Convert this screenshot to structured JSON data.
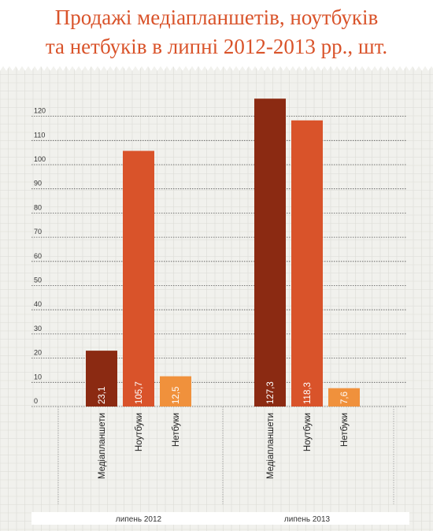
{
  "title": {
    "line1": "Продажі медіапланшетів, ноутбуків",
    "line2": "та нетбуків  в липні 2012-2013 рр., шт."
  },
  "colors": {
    "title": "#d9532a",
    "background": "#f1f1ed",
    "grid": "#dcdcd6",
    "series": [
      "#8b2a12",
      "#d9532a",
      "#f0913c"
    ]
  },
  "chart_data": {
    "type": "bar",
    "title": "Продажі медіапланшетів, ноутбуків та нетбуків  в липні 2012-2013 рр., шт.",
    "xlabel": "",
    "ylabel": "",
    "yticks": [
      0,
      10,
      20,
      30,
      40,
      50,
      60,
      70,
      80,
      90,
      100,
      110,
      120
    ],
    "ylim": [
      0,
      130
    ],
    "grid": true,
    "legend": "none",
    "groups": [
      {
        "label": "липень  2012",
        "categories": [
          "Медіапланшети",
          "Ноутбуки",
          "Нетбуки"
        ],
        "values": [
          23.1,
          105.7,
          12.5
        ],
        "value_labels": [
          "23,1",
          "105,7",
          "12,5"
        ]
      },
      {
        "label": "липень  2013",
        "categories": [
          "Медіапланшети",
          "Ноутбуки",
          "Нетбуки"
        ],
        "values": [
          127.3,
          118.3,
          7.6
        ],
        "value_labels": [
          "127,3",
          "118,3",
          "7,6"
        ]
      }
    ]
  }
}
